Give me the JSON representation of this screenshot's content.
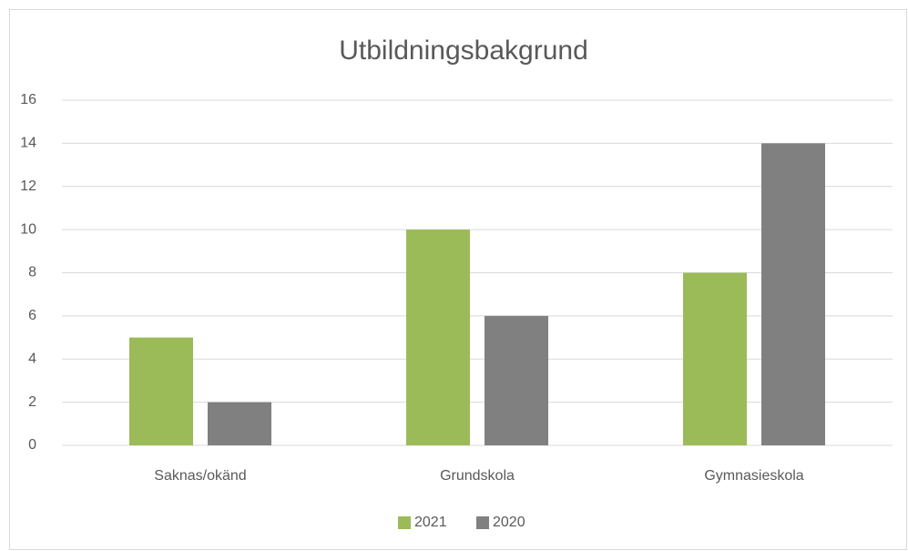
{
  "chart_data": {
    "type": "bar",
    "title": "Utbildningsbakgrund",
    "categories": [
      "Saknas/okänd",
      "Grundskola",
      "Gymnasieskola"
    ],
    "series": [
      {
        "name": "2021",
        "color": "#9bbb59",
        "values": [
          5,
          10,
          8
        ]
      },
      {
        "name": "2020",
        "color": "#808080",
        "values": [
          2,
          6,
          14
        ]
      }
    ],
    "ylim": [
      0,
      16
    ],
    "yticks": [
      0,
      2,
      4,
      6,
      8,
      10,
      12,
      14,
      16
    ],
    "grid": true,
    "legend": "bottom"
  }
}
